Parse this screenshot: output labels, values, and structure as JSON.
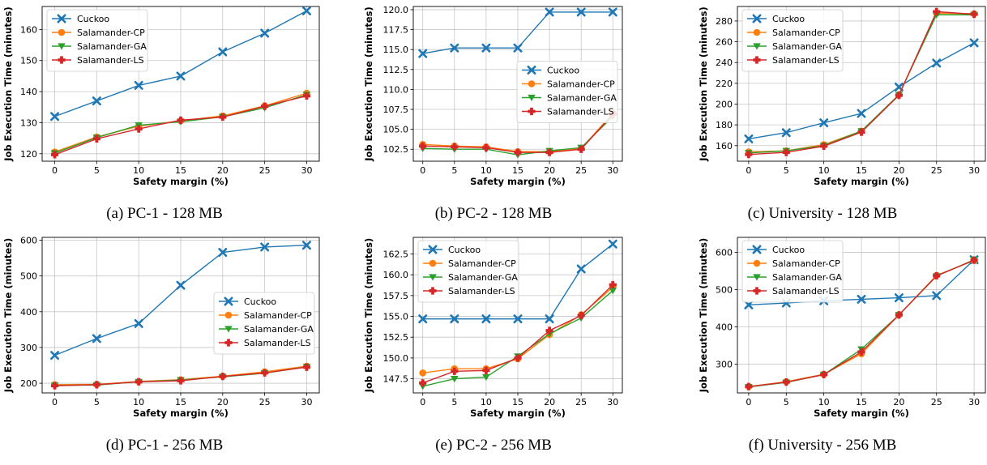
{
  "legend_labels": [
    "Cuckoo",
    "Salamander-CP",
    "Salamander-GA",
    "Salamander-LS"
  ],
  "series_colors": [
    "#1f77b4",
    "#ff7f0e",
    "#2ca02c",
    "#d62728"
  ],
  "series_markers": [
    "x",
    "circle",
    "triangle-down",
    "plus"
  ],
  "chart_data": [
    {
      "type": "line",
      "caption": "(a) PC-1 - 128 MB",
      "xlabel": "Safety margin (%)",
      "ylabel": "Job Execution Time (minutes)",
      "x": [
        0,
        5,
        10,
        15,
        20,
        25,
        30
      ],
      "xlim": [
        -1.5,
        31.5
      ],
      "ylim": [
        117.6,
        167.4
      ],
      "yticks": [
        120,
        130,
        140,
        150,
        160
      ],
      "ytick_labels": [
        "120",
        "130",
        "140",
        "150",
        "160"
      ],
      "grid": true,
      "legend_position": "upper-left",
      "series": [
        {
          "name": "Cuckoo",
          "values": [
            132,
            137,
            142,
            145,
            152.8,
            158.8,
            166
          ]
        },
        {
          "name": "Salamander-CP",
          "values": [
            120.6,
            125.4,
            128.9,
            130.6,
            132.2,
            135.4,
            139.5
          ]
        },
        {
          "name": "Salamander-GA",
          "values": [
            120.2,
            125.2,
            129.2,
            130.3,
            131.9,
            134.8,
            139
          ]
        },
        {
          "name": "Salamander-LS",
          "values": [
            119.7,
            124.8,
            128,
            130.8,
            131.8,
            135.3,
            138.6
          ]
        }
      ]
    },
    {
      "type": "line",
      "caption": "(b) PC-2 - 128 MB",
      "xlabel": "Safety margin (%)",
      "ylabel": "Job Execution Time (minutes)",
      "x": [
        0,
        5,
        10,
        15,
        20,
        25,
        30
      ],
      "xlim": [
        -1.5,
        31.5
      ],
      "ylim": [
        101.0,
        120.4
      ],
      "yticks": [
        102.5,
        105.0,
        107.5,
        110.0,
        112.5,
        115.0,
        117.5,
        120.0
      ],
      "ytick_labels": [
        "102.5",
        "105.0",
        "107.5",
        "110.0",
        "112.5",
        "115.0",
        "117.5",
        "120.0"
      ],
      "grid": true,
      "legend_position": "center-right",
      "series": [
        {
          "name": "Cuckoo",
          "values": [
            114.5,
            115.2,
            115.2,
            115.2,
            119.7,
            119.7,
            119.7
          ]
        },
        {
          "name": "Salamander-CP",
          "values": [
            103.1,
            102.9,
            102.8,
            102.2,
            102.2,
            102.6,
            107
          ]
        },
        {
          "name": "Salamander-GA",
          "values": [
            102.6,
            102.5,
            102.5,
            101.8,
            102.3,
            102.7,
            106.6
          ]
        },
        {
          "name": "Salamander-LS",
          "values": [
            102.9,
            102.8,
            102.7,
            102.1,
            102.1,
            102.5,
            106.9
          ]
        }
      ]
    },
    {
      "type": "line",
      "caption": "(c) University - 128 MB",
      "xlabel": "Safety margin (%)",
      "ylabel": "Job Execution Time (minutes)",
      "x": [
        0,
        5,
        10,
        15,
        20,
        25,
        30
      ],
      "xlim": [
        -1.5,
        31.5
      ],
      "ylim": [
        145,
        294
      ],
      "yticks": [
        160,
        180,
        200,
        220,
        240,
        260,
        280
      ],
      "ytick_labels": [
        "160",
        "180",
        "200",
        "220",
        "240",
        "260",
        "280"
      ],
      "grid": true,
      "legend_position": "upper-left",
      "series": [
        {
          "name": "Cuckoo",
          "values": [
            166.5,
            172.5,
            182,
            191,
            216.5,
            239.5,
            259
          ]
        },
        {
          "name": "Salamander-CP",
          "values": [
            154,
            155,
            161,
            174,
            209,
            287.5,
            287
          ]
        },
        {
          "name": "Salamander-GA",
          "values": [
            153,
            155,
            160,
            174,
            209,
            286,
            286
          ]
        },
        {
          "name": "Salamander-LS",
          "values": [
            151.5,
            153.5,
            159.5,
            173,
            208.5,
            289,
            286.5
          ]
        }
      ]
    },
    {
      "type": "line",
      "caption": "(d) PC-1 - 256 MB",
      "xlabel": "Safety margin (%)",
      "ylabel": "Job Execution Time (minutes)",
      "x": [
        0,
        5,
        10,
        15,
        20,
        25,
        30
      ],
      "xlim": [
        -1.5,
        31.5
      ],
      "ylim": [
        173,
        608
      ],
      "yticks": [
        200,
        300,
        400,
        500,
        600
      ],
      "ytick_labels": [
        "200",
        "300",
        "400",
        "500",
        "600"
      ],
      "grid": true,
      "legend_position": "center-right",
      "series": [
        {
          "name": "Cuckoo",
          "values": [
            278,
            325,
            367,
            474,
            566,
            581,
            586
          ]
        },
        {
          "name": "Salamander-CP",
          "values": [
            196,
            197,
            205,
            210,
            220,
            232,
            248
          ]
        },
        {
          "name": "Salamander-GA",
          "values": [
            194,
            195,
            204,
            209,
            218,
            228,
            246
          ]
        },
        {
          "name": "Salamander-LS",
          "values": [
            193,
            196,
            204,
            207,
            219,
            229,
            245
          ]
        }
      ]
    },
    {
      "type": "line",
      "caption": "(e) PC-2 - 256 MB",
      "xlabel": "Safety margin (%)",
      "ylabel": "Job Execution Time (minutes)",
      "x": [
        0,
        5,
        10,
        15,
        20,
        25,
        30
      ],
      "xlim": [
        -1.5,
        31.5
      ],
      "ylim": [
        145.8,
        164.5
      ],
      "yticks": [
        147.5,
        150.0,
        152.5,
        155.0,
        157.5,
        160.0,
        162.5
      ],
      "ytick_labels": [
        "147.5",
        "150.0",
        "152.5",
        "155.0",
        "157.5",
        "160.0",
        "162.5"
      ],
      "grid": true,
      "legend_position": "upper-left",
      "series": [
        {
          "name": "Cuckoo",
          "values": [
            154.7,
            154.7,
            154.7,
            154.7,
            154.7,
            160.7,
            163.7
          ]
        },
        {
          "name": "Salamander-CP",
          "values": [
            148.2,
            148.7,
            148.7,
            149.9,
            152.8,
            155.2,
            158.5
          ]
        },
        {
          "name": "Salamander-GA",
          "values": [
            146.6,
            147.5,
            147.7,
            150.2,
            152.9,
            154.8,
            158.1
          ]
        },
        {
          "name": "Salamander-LS",
          "values": [
            147,
            148.4,
            148.5,
            150,
            153.3,
            155.1,
            158.8
          ]
        }
      ]
    },
    {
      "type": "line",
      "caption": "(f) University - 256 MB",
      "xlabel": "Safety margin (%)",
      "ylabel": "Job Execution Time (minutes)",
      "x": [
        0,
        5,
        10,
        15,
        20,
        25,
        30
      ],
      "xlim": [
        -1.5,
        31.5
      ],
      "ylim": [
        223,
        640
      ],
      "yticks": [
        300,
        400,
        500,
        600
      ],
      "ytick_labels": [
        "300",
        "400",
        "500",
        "600"
      ],
      "grid": true,
      "legend_position": "upper-left",
      "series": [
        {
          "name": "Cuckoo",
          "values": [
            459,
            464,
            470,
            474,
            478,
            484,
            580
          ]
        },
        {
          "name": "Salamander-CP",
          "values": [
            240,
            253,
            273,
            328,
            432,
            538,
            578
          ]
        },
        {
          "name": "Salamander-GA",
          "values": [
            239,
            251,
            272,
            340,
            432,
            536,
            580
          ]
        },
        {
          "name": "Salamander-LS",
          "values": [
            240,
            252,
            272,
            333,
            432,
            537,
            579
          ]
        }
      ]
    }
  ]
}
